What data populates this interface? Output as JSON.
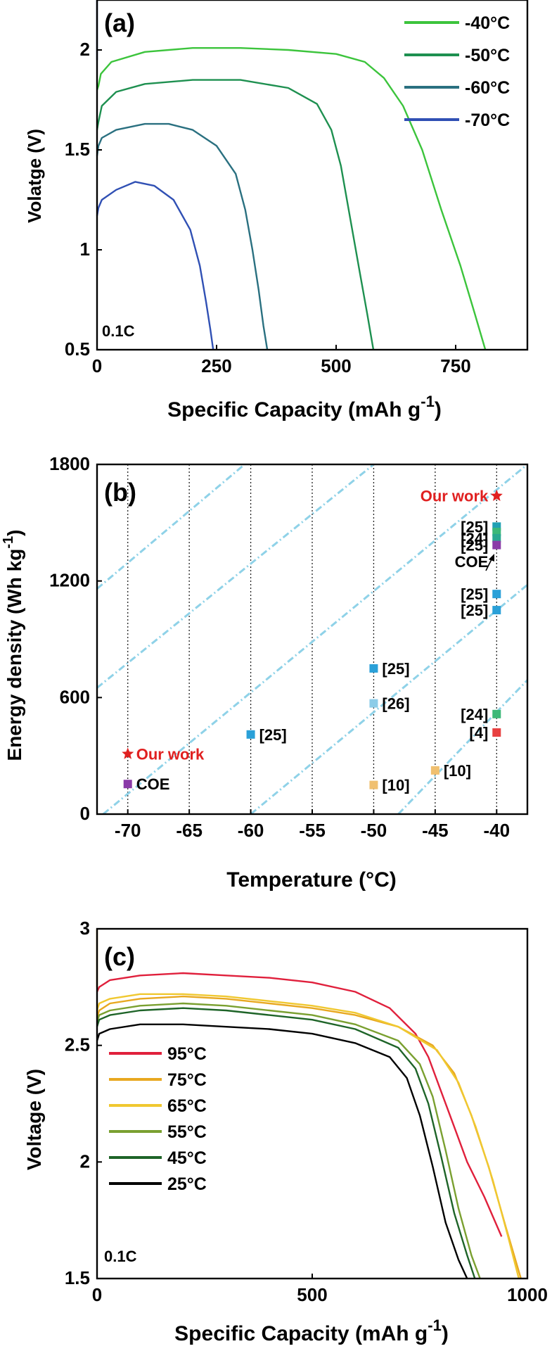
{
  "chart_data": [
    {
      "panel": "(a)",
      "type": "line",
      "xlabel": "Specific Capacity (mAh g",
      "xlabel_sup": "-1",
      "xlabel_end": ")",
      "ylabel": "Volatge (V)",
      "xlim": [
        0,
        900
      ],
      "ylim": [
        0.5,
        2.25
      ],
      "xticks": [
        0,
        250,
        500,
        750
      ],
      "yticks": [
        0.5,
        1,
        1.5,
        2
      ],
      "annotation": "0.1C",
      "legend_position": "top-right",
      "series": [
        {
          "name": "-40°C",
          "color": "#3cc43c",
          "x": [
            0,
            3,
            8,
            30,
            100,
            200,
            300,
            400,
            500,
            560,
            600,
            640,
            680,
            720,
            760,
            790,
            812
          ],
          "y": [
            1.8,
            1.82,
            1.88,
            1.94,
            1.99,
            2.01,
            2.01,
            2.0,
            1.98,
            1.94,
            1.86,
            1.72,
            1.5,
            1.2,
            0.92,
            0.68,
            0.5
          ]
        },
        {
          "name": "-50°C",
          "color": "#1e9050",
          "x": [
            0,
            3,
            10,
            40,
            100,
            200,
            300,
            400,
            460,
            490,
            510,
            530,
            550,
            565,
            578
          ],
          "y": [
            1.6,
            1.64,
            1.72,
            1.79,
            1.83,
            1.85,
            1.85,
            1.81,
            1.73,
            1.6,
            1.42,
            1.15,
            0.88,
            0.68,
            0.5
          ]
        },
        {
          "name": "-60°C",
          "color": "#2a7080",
          "x": [
            0,
            3,
            10,
            40,
            100,
            150,
            200,
            250,
            290,
            310,
            325,
            338,
            348,
            356
          ],
          "y": [
            1.47,
            1.52,
            1.56,
            1.6,
            1.63,
            1.63,
            1.6,
            1.52,
            1.38,
            1.2,
            1.0,
            0.8,
            0.62,
            0.5
          ]
        },
        {
          "name": "-70°C",
          "color": "#3050b4",
          "x": [
            0,
            3,
            10,
            40,
            80,
            120,
            160,
            195,
            215,
            228,
            237,
            243
          ],
          "y": [
            1.17,
            1.21,
            1.25,
            1.3,
            1.34,
            1.32,
            1.25,
            1.1,
            0.92,
            0.74,
            0.6,
            0.5
          ]
        }
      ],
      "extra_line": {
        "x": [
          0,
          0
        ],
        "y": [
          1.95,
          2.25
        ],
        "color": "#3050b4"
      }
    },
    {
      "panel": "(b)",
      "type": "scatter",
      "xlabel": "Temperature (°C)",
      "ylabel": "Energy density (Wh kg",
      "ylabel_sup": "-1",
      "ylabel_end": ")",
      "xlim": [
        -72.5,
        -37.5
      ],
      "ylim": [
        0,
        1800
      ],
      "xticks": [
        -70,
        -65,
        -60,
        -55,
        -50,
        -45,
        -40
      ],
      "yticks": [
        0,
        600,
        1200,
        1800
      ],
      "vertical_gridlines": [
        -70,
        -65,
        -60,
        -55,
        -50,
        -45,
        -40
      ],
      "diagonal_guides": [
        {
          "x": [
            -72.5,
            -60.5
          ],
          "y": [
            1160,
            1800
          ]
        },
        {
          "x": [
            -72.5,
            -50.0
          ],
          "y": [
            650,
            1800
          ]
        },
        {
          "x": [
            -72.0,
            -37.5
          ],
          "y": [
            0,
            1800
          ]
        },
        {
          "x": [
            -60.0,
            -37.5
          ],
          "y": [
            0,
            1180
          ]
        },
        {
          "x": [
            -48.0,
            -37.5
          ],
          "y": [
            0,
            690
          ]
        }
      ],
      "points": [
        {
          "x": -40,
          "y": 1638,
          "label": "Our work",
          "marker": "star",
          "color": "#e02020",
          "label_color": "#e02020"
        },
        {
          "x": -40,
          "y": 1480,
          "label": "[25]",
          "marker": "square",
          "color": "#20a0b4"
        },
        {
          "x": -40,
          "y": 1452,
          "label": "",
          "marker": "square",
          "color": "#3cb878"
        },
        {
          "x": -40,
          "y": 1420,
          "label": "[24]",
          "marker": "square",
          "color": "#2aa890"
        },
        {
          "x": -40,
          "y": 1385,
          "label": "[25]",
          "marker": "square",
          "color": "#8a3aa8"
        },
        {
          "x": -40,
          "y": 1300,
          "label": "COE",
          "marker": "none",
          "color": "#000000"
        },
        {
          "x": -40,
          "y": 1133,
          "label": "[25]",
          "marker": "square",
          "color": "#2aa0d8"
        },
        {
          "x": -40,
          "y": 1050,
          "label": "[25]",
          "marker": "square",
          "color": "#2aa0d8"
        },
        {
          "x": -40,
          "y": 515,
          "label": "[24]",
          "marker": "square",
          "color": "#3cb878"
        },
        {
          "x": -40,
          "y": 420,
          "label": "[4]",
          "marker": "square",
          "color": "#e84040"
        },
        {
          "x": -45,
          "y": 225,
          "label": "[10]",
          "marker": "square",
          "color": "#f0c070"
        },
        {
          "x": -50,
          "y": 150,
          "label": "[10]",
          "marker": "square",
          "color": "#f0c070"
        },
        {
          "x": -50,
          "y": 570,
          "label": "[26]",
          "marker": "square",
          "color": "#8ccce8"
        },
        {
          "x": -50,
          "y": 750,
          "label": "[25]",
          "marker": "square",
          "color": "#2aa0d8"
        },
        {
          "x": -60,
          "y": 410,
          "label": "[25]",
          "marker": "square",
          "color": "#2aa0d8"
        },
        {
          "x": -70,
          "y": 310,
          "label": "Our work",
          "marker": "star",
          "color": "#e02020",
          "label_color": "#e02020"
        },
        {
          "x": -70,
          "y": 155,
          "label": "COE",
          "marker": "square",
          "color": "#8a3aa8"
        }
      ]
    },
    {
      "panel": "(c)",
      "type": "line",
      "xlabel": "Specific Capacity (mAh g",
      "xlabel_sup": "-1",
      "xlabel_end": ")",
      "ylabel": "Voltage (V)",
      "xlim": [
        0,
        1000
      ],
      "ylim": [
        1.5,
        3.0
      ],
      "xticks": [
        0,
        500,
        1000
      ],
      "yticks": [
        1.5,
        2,
        2.5,
        3
      ],
      "annotation": "0.1C",
      "legend_position": "bottom-left",
      "series": [
        {
          "name": "95°C",
          "color": "#e0203c",
          "x": [
            0,
            5,
            30,
            100,
            200,
            300,
            400,
            500,
            600,
            680,
            740,
            770,
            800,
            830,
            860,
            900,
            940
          ],
          "y": [
            2.73,
            2.75,
            2.78,
            2.8,
            2.81,
            2.8,
            2.79,
            2.77,
            2.73,
            2.66,
            2.55,
            2.45,
            2.3,
            2.15,
            2.0,
            1.85,
            1.68
          ]
        },
        {
          "name": "75°C",
          "color": "#e8a820",
          "x": [
            0,
            5,
            30,
            100,
            200,
            300,
            400,
            500,
            600,
            700,
            780,
            830,
            870,
            910,
            950,
            985
          ],
          "y": [
            2.62,
            2.65,
            2.68,
            2.7,
            2.71,
            2.7,
            2.68,
            2.66,
            2.63,
            2.58,
            2.5,
            2.38,
            2.2,
            1.98,
            1.72,
            1.5
          ]
        },
        {
          "name": "65°C",
          "color": "#f0c830",
          "x": [
            0,
            5,
            30,
            100,
            200,
            300,
            400,
            500,
            600,
            700,
            790,
            840,
            880,
            920,
            955,
            980
          ],
          "y": [
            2.65,
            2.68,
            2.7,
            2.72,
            2.72,
            2.71,
            2.69,
            2.67,
            2.64,
            2.58,
            2.48,
            2.34,
            2.15,
            1.92,
            1.68,
            1.5
          ]
        },
        {
          "name": "55°C",
          "color": "#7aa030",
          "x": [
            0,
            5,
            30,
            100,
            200,
            300,
            400,
            500,
            600,
            700,
            750,
            780,
            810,
            840,
            870,
            890
          ],
          "y": [
            2.6,
            2.63,
            2.65,
            2.67,
            2.68,
            2.67,
            2.65,
            2.63,
            2.59,
            2.52,
            2.42,
            2.28,
            2.05,
            1.8,
            1.6,
            1.5
          ]
        },
        {
          "name": "45°C",
          "color": "#1e6428",
          "x": [
            0,
            5,
            30,
            100,
            200,
            300,
            400,
            500,
            600,
            700,
            740,
            770,
            800,
            830,
            860,
            878
          ],
          "y": [
            2.58,
            2.61,
            2.63,
            2.65,
            2.66,
            2.65,
            2.63,
            2.61,
            2.57,
            2.49,
            2.4,
            2.25,
            2.02,
            1.78,
            1.6,
            1.5
          ]
        },
        {
          "name": "25°C",
          "color": "#000000",
          "x": [
            0,
            5,
            30,
            100,
            200,
            300,
            400,
            500,
            600,
            680,
            720,
            750,
            780,
            810,
            840,
            860
          ],
          "y": [
            2.52,
            2.55,
            2.57,
            2.59,
            2.59,
            2.58,
            2.57,
            2.55,
            2.51,
            2.45,
            2.36,
            2.2,
            1.98,
            1.74,
            1.58,
            1.5
          ]
        }
      ],
      "extra_line": {
        "x": [
          0,
          0
        ],
        "y": [
          2.75,
          3.0
        ],
        "color": "#e8a820"
      }
    }
  ]
}
